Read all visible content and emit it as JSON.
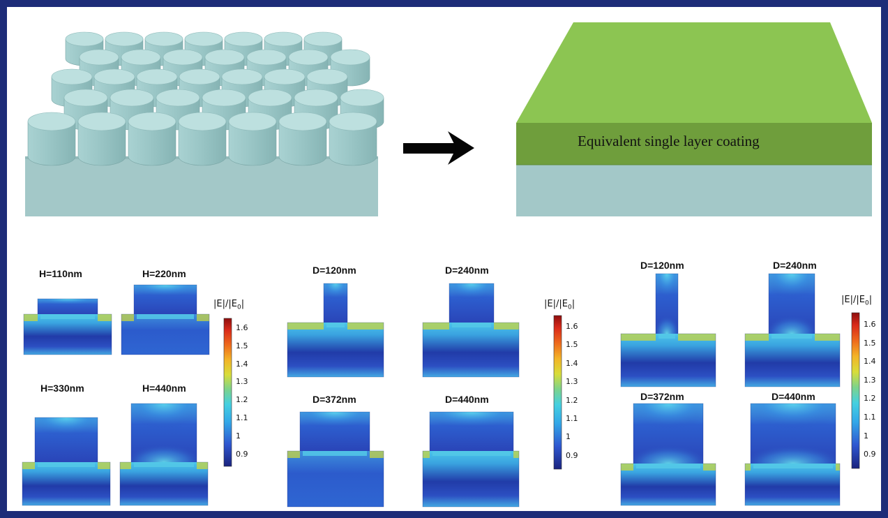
{
  "top": {
    "coating_label": "Equivalent single layer coating"
  },
  "colorbar": {
    "title_pre": "|E|/|E",
    "title_sub": "0",
    "title_post": "|",
    "ticks": [
      "1.6",
      "1.5",
      "1.4",
      "1.3",
      "1.2",
      "1.1",
      "1",
      "0.9"
    ]
  },
  "groups": [
    {
      "labels": [
        "H=110nm",
        "H=220nm",
        "H=330nm",
        "H=440nm"
      ]
    },
    {
      "labels": [
        "D=120nm",
        "D=240nm",
        "D=372nm",
        "D=440nm"
      ]
    },
    {
      "labels": [
        "D=120nm",
        "D=240nm",
        "D=372nm",
        "D=440nm"
      ]
    }
  ],
  "colors": {
    "border": "#1d2c78",
    "pillar_top": "#b9dedd",
    "pillar_side": "#9cc8c8",
    "substrate": "#a2c7c7",
    "coating_top": "#8cc552",
    "coating_front": "#6f9e3c",
    "field_base": "#2c52c8",
    "field_dark": "#1b2f9a",
    "field_light": "#4ec3ea",
    "field_hot": "#d9d23a"
  }
}
